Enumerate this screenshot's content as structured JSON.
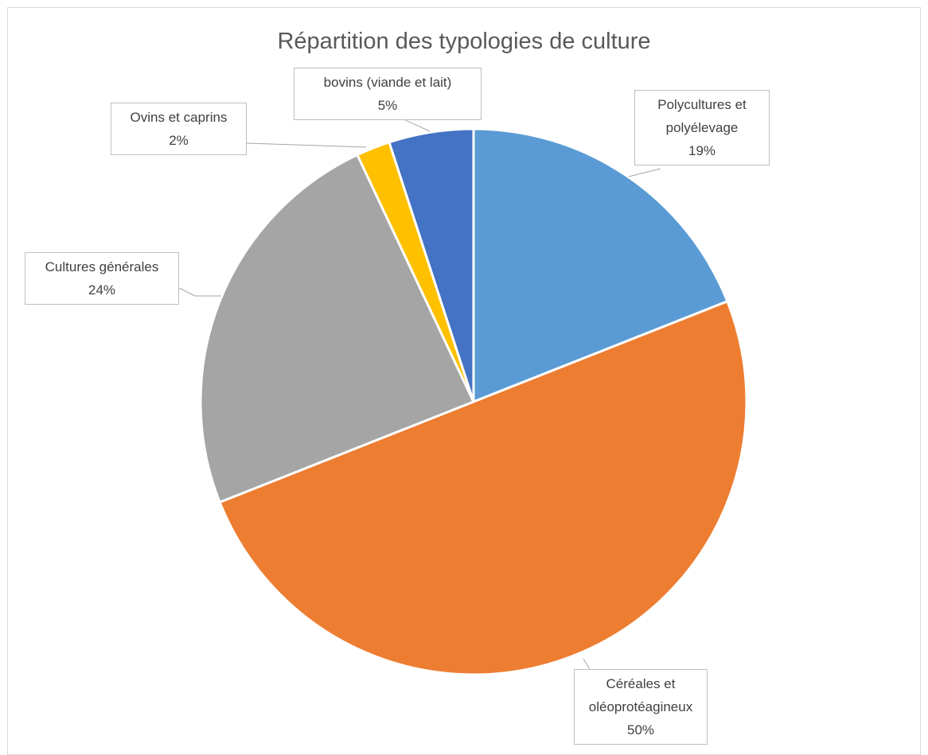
{
  "chart_data": {
    "type": "pie",
    "title": "Répartition des typologies de culture",
    "categories": [
      "Polycultures et polyélevage",
      "Céréales et oléoprotéagineux",
      "Cultures générales",
      "Ovins et caprins",
      "bovins (viande et lait)"
    ],
    "values": [
      19,
      50,
      24,
      2,
      5
    ],
    "value_labels": [
      "19%",
      "50%",
      "24%",
      "2%",
      "5%"
    ],
    "colors": [
      "#5b9bd5",
      "#ed7d31",
      "#a5a5a5",
      "#ffc000",
      "#4472c4"
    ]
  }
}
